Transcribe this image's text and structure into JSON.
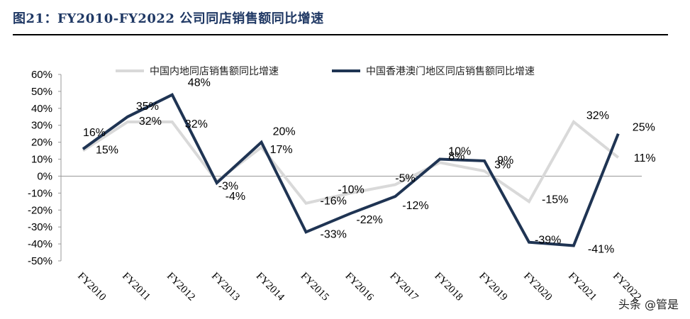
{
  "figure_title": "图21：FY2010-FY2022 公司同店销售额同比增速",
  "watermark": "头条 @管是",
  "colors": {
    "mainland": "#d9d9d9",
    "hkmacau": "#1f3453",
    "title": "#1f3864"
  },
  "chart_data": {
    "type": "line",
    "title": "",
    "xlabel": "",
    "ylabel": "",
    "ylim": [
      -50,
      60
    ],
    "yticks": [
      60,
      50,
      40,
      30,
      20,
      10,
      0,
      -10,
      -20,
      -30,
      -40,
      -50
    ],
    "ytick_labels": [
      "60%",
      "50%",
      "40%",
      "30%",
      "20%",
      "10%",
      "0%",
      "-10%",
      "-20%",
      "-30%",
      "-40%",
      "-50%"
    ],
    "grid": false,
    "legend_position": "top",
    "categories": [
      "FY2010",
      "FY2011",
      "FY2012",
      "FY2013",
      "FY2014",
      "FY2015",
      "FY2016",
      "FY2017",
      "FY2018",
      "FY2019",
      "FY2020",
      "FY2021",
      "FY2022"
    ],
    "series": [
      {
        "name": "中国内地同店销售额同比增速",
        "values": [
          15,
          32,
          32,
          -3,
          17,
          -16,
          -10,
          -5,
          8,
          3,
          -15,
          32,
          11
        ],
        "labels": [
          "15%",
          "32%",
          "32%",
          "-3%",
          "17%",
          "-16%",
          "-10%",
          "-5%",
          "8%",
          "3%",
          "-15%",
          "32%",
          "11%"
        ]
      },
      {
        "name": "中国香港澳门地区同店销售额同比增速",
        "values": [
          16,
          35,
          48,
          -4,
          20,
          -33,
          -22,
          -12,
          10,
          9,
          -39,
          -41,
          25
        ],
        "labels": [
          "16%",
          "35%",
          "48%",
          "-4%",
          "20%",
          "-33%",
          "-22%",
          "-12%",
          "10%",
          "9%",
          "-39%",
          "-41%",
          "25%"
        ]
      }
    ]
  }
}
